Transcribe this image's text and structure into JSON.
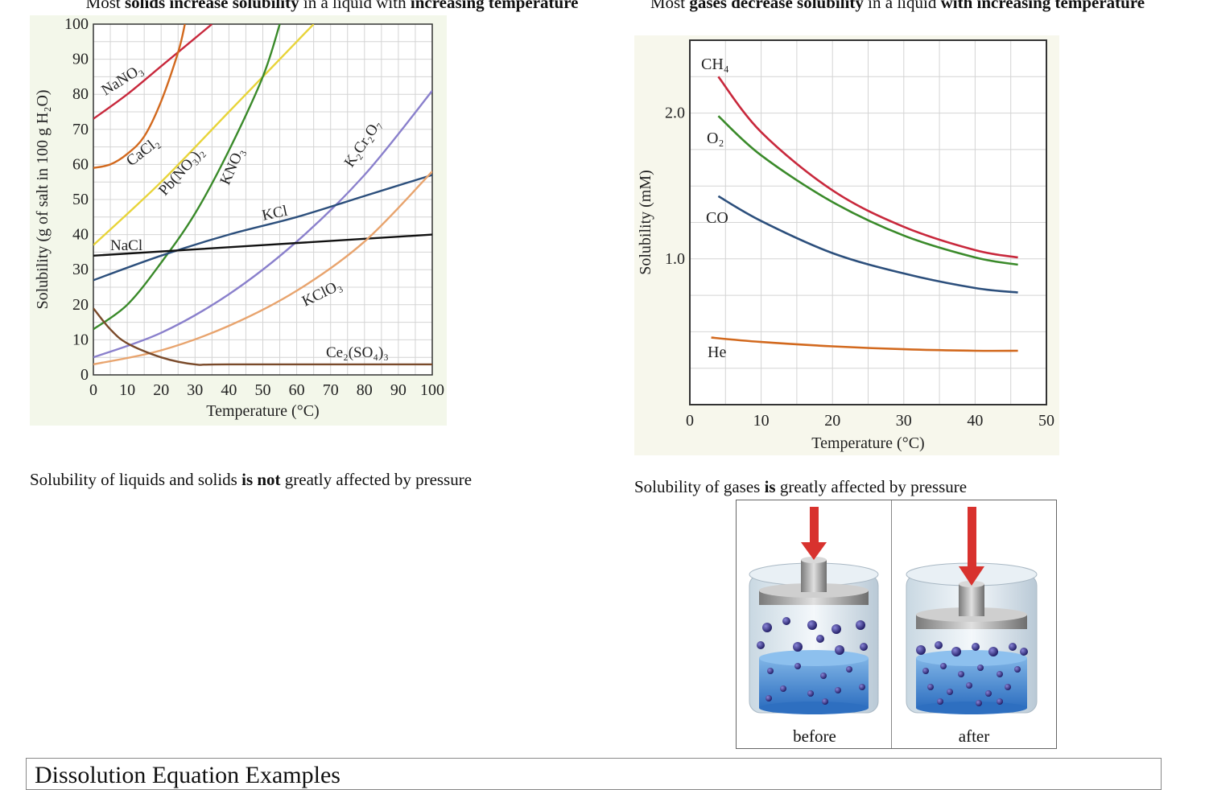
{
  "left": {
    "title_parts": [
      {
        "text": "Most ",
        "bold": false
      },
      {
        "text": "solids increase solubility",
        "bold": true
      },
      {
        "text": " in a liquid with ",
        "bold": false
      },
      {
        "text": "increasing temperature",
        "bold": true
      }
    ],
    "caption_parts": [
      {
        "text": "Solubility of liquids and solids ",
        "bold": false
      },
      {
        "text": "is not",
        "bold": true
      },
      {
        "text": " greatly affected by pressure",
        "bold": false
      }
    ]
  },
  "right": {
    "title_parts": [
      {
        "text": "Most ",
        "bold": false
      },
      {
        "text": "gases decrease solubility",
        "bold": true
      },
      {
        "text": " in a liquid ",
        "bold": false
      },
      {
        "text": "with increasing temperature",
        "bold": true
      }
    ],
    "caption_parts": [
      {
        "text": "Solubility of gases ",
        "bold": false
      },
      {
        "text": "is",
        "bold": true
      },
      {
        "text": " greatly affected by pressure",
        "bold": false
      }
    ]
  },
  "piston": {
    "before_label": "before",
    "after_label": "after"
  },
  "bottom_box_text": "Dissolution Equation Examples",
  "chart_data": [
    {
      "type": "line",
      "xlabel": "Temperature (°C)",
      "ylabel": "Solubility (g of salt in 100 g H₂O)",
      "xlim": [
        0,
        100
      ],
      "ylim": [
        0,
        100
      ],
      "xticks": [
        0,
        10,
        20,
        30,
        40,
        50,
        60,
        70,
        80,
        90,
        100
      ],
      "yticks": [
        0,
        10,
        20,
        30,
        40,
        50,
        60,
        70,
        80,
        90,
        100
      ],
      "grid": true,
      "series": [
        {
          "name": "NaNO₃",
          "color": "#c8283c",
          "x": [
            0,
            10,
            20,
            30,
            35
          ],
          "y": [
            73,
            80,
            88,
            96,
            100
          ]
        },
        {
          "name": "CaCl₂",
          "color": "#d2691e",
          "x": [
            0,
            5,
            10,
            15,
            20,
            25,
            27
          ],
          "y": [
            59,
            60,
            63,
            68,
            78,
            92,
            100
          ]
        },
        {
          "name": "Pb(NO₃)₂",
          "color": "#e8d43a",
          "x": [
            0,
            20,
            40,
            60,
            65
          ],
          "y": [
            37,
            55,
            75,
            95,
            100
          ]
        },
        {
          "name": "KNO₃",
          "color": "#3a8a2a",
          "x": [
            0,
            10,
            20,
            30,
            40,
            50,
            55
          ],
          "y": [
            13,
            20,
            32,
            46,
            64,
            85,
            100
          ]
        },
        {
          "name": "K₂Cr₂O₇",
          "color": "#8a80cc",
          "x": [
            0,
            20,
            40,
            60,
            80,
            100
          ],
          "y": [
            5,
            12,
            23,
            38,
            57,
            81
          ]
        },
        {
          "name": "KCl",
          "color": "#2c4f7c",
          "x": [
            0,
            20,
            40,
            60,
            80,
            100
          ],
          "y": [
            27,
            34,
            40,
            45,
            51,
            57
          ]
        },
        {
          "name": "NaCl",
          "color": "#111111",
          "x": [
            0,
            100
          ],
          "y": [
            34,
            40
          ]
        },
        {
          "name": "KClO₃",
          "color": "#e8a46e",
          "x": [
            0,
            20,
            40,
            60,
            80,
            100
          ],
          "y": [
            3,
            7,
            14,
            24,
            38,
            58
          ]
        },
        {
          "name": "Ce₂(SO₄)₃",
          "color": "#7a4a2a",
          "x": [
            0,
            5,
            10,
            20,
            30,
            40,
            100
          ],
          "y": [
            19,
            13,
            9,
            5,
            3,
            3,
            3
          ]
        }
      ]
    },
    {
      "type": "line",
      "xlabel": "Temperature (°C)",
      "ylabel": "Solubility (mM)",
      "xlim": [
        0,
        50
      ],
      "ylim": [
        0,
        2.5
      ],
      "xticks": [
        0,
        10,
        20,
        30,
        40,
        50
      ],
      "yticks": [
        1.0,
        2.0
      ],
      "grid": true,
      "series": [
        {
          "name": "CH₄",
          "color": "#c8283c",
          "x": [
            4,
            10,
            20,
            30,
            40,
            46
          ],
          "y": [
            2.25,
            1.87,
            1.47,
            1.22,
            1.06,
            1.01
          ]
        },
        {
          "name": "O₂",
          "color": "#3a8a2a",
          "x": [
            4,
            10,
            20,
            30,
            40,
            46
          ],
          "y": [
            1.98,
            1.71,
            1.39,
            1.16,
            1.01,
            0.96
          ]
        },
        {
          "name": "CO",
          "color": "#2c4f7c",
          "x": [
            4,
            10,
            20,
            30,
            40,
            46
          ],
          "y": [
            1.43,
            1.26,
            1.04,
            0.9,
            0.8,
            0.77
          ]
        },
        {
          "name": "He",
          "color": "#d2691e",
          "x": [
            3,
            10,
            20,
            30,
            40,
            46
          ],
          "y": [
            0.46,
            0.43,
            0.4,
            0.38,
            0.37,
            0.37
          ]
        }
      ]
    }
  ]
}
